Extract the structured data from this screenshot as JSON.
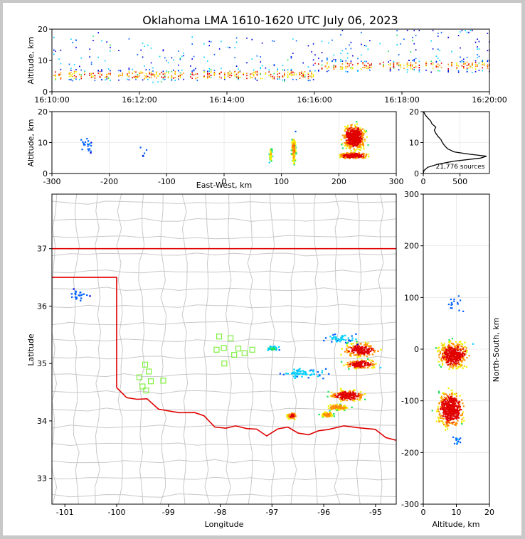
{
  "title": "Oklahoma LMA 1610-1620 UTC July 06, 2023",
  "colors": {
    "density": [
      "#0000e0",
      "#0060ff",
      "#00d0ff",
      "#20e060",
      "#f0f000",
      "#ff9000",
      "#e00000"
    ],
    "state_border": "#e00000",
    "county_lines": "#c8c8c8",
    "stations": "#80f040",
    "profile_line": "#000000"
  },
  "chart_data": [
    {
      "name": "time_height",
      "type": "heatmap",
      "xlabel": "",
      "ylabel": "Altitude, km",
      "x_ticks": [
        "16:10:00",
        "16:12:00",
        "16:14:00",
        "16:16:00",
        "16:18:00",
        "16:20:00"
      ],
      "x_range_minutes": [
        0,
        10
      ],
      "ylim": [
        0,
        20
      ],
      "y_ticks": [
        0,
        10,
        20
      ]
    },
    {
      "name": "east_west_height",
      "type": "heatmap",
      "xlabel": "East-West, km",
      "ylabel": "Altitude, km",
      "xlim": [
        -300,
        300
      ],
      "x_ticks": [
        -300,
        -200,
        -100,
        0,
        100,
        200,
        300
      ],
      "ylim": [
        0,
        20
      ],
      "y_ticks": [
        0,
        10,
        20
      ]
    },
    {
      "name": "altitude_histogram",
      "type": "line",
      "xlim": [
        0,
        900
      ],
      "x_ticks": [
        0,
        500
      ],
      "ylim": [
        0,
        20
      ],
      "y_ticks": [
        0,
        10,
        20
      ],
      "annotation": "21,776 sources",
      "profile": [
        {
          "alt": 0.0,
          "count": 0
        },
        {
          "alt": 1.0,
          "count": 10
        },
        {
          "alt": 2.0,
          "count": 60
        },
        {
          "alt": 3.0,
          "count": 200
        },
        {
          "alt": 4.0,
          "count": 420
        },
        {
          "alt": 5.0,
          "count": 780
        },
        {
          "alt": 5.6,
          "count": 860
        },
        {
          "alt": 6.2,
          "count": 640
        },
        {
          "alt": 7.0,
          "count": 420
        },
        {
          "alt": 8.0,
          "count": 330
        },
        {
          "alt": 9.0,
          "count": 290
        },
        {
          "alt": 10.0,
          "count": 260
        },
        {
          "alt": 11.0,
          "count": 240
        },
        {
          "alt": 12.0,
          "count": 200
        },
        {
          "alt": 13.0,
          "count": 170
        },
        {
          "alt": 14.0,
          "count": 150
        },
        {
          "alt": 15.0,
          "count": 170
        },
        {
          "alt": 16.0,
          "count": 120
        },
        {
          "alt": 17.0,
          "count": 100
        },
        {
          "alt": 18.0,
          "count": 60
        },
        {
          "alt": 19.0,
          "count": 25
        },
        {
          "alt": 20.0,
          "count": 5
        }
      ]
    },
    {
      "name": "plan_view",
      "type": "heatmap",
      "xlabel": "Longitude",
      "ylabel": "Latitude",
      "xlim": [
        -101.25,
        -94.6
      ],
      "x_ticks": [
        -101,
        -100,
        -99,
        -98,
        -97,
        -96,
        -95
      ],
      "ylim": [
        32.55,
        37.95
      ],
      "y_ticks": [
        33,
        34,
        35,
        36,
        37
      ],
      "stations": [
        {
          "lon": -99.56,
          "lat": 34.76
        },
        {
          "lon": -99.45,
          "lat": 34.98
        },
        {
          "lon": -99.38,
          "lat": 34.86
        },
        {
          "lon": -99.34,
          "lat": 34.69
        },
        {
          "lon": -99.5,
          "lat": 34.6
        },
        {
          "lon": -99.43,
          "lat": 34.53
        },
        {
          "lon": -99.1,
          "lat": 34.7
        },
        {
          "lon": -98.02,
          "lat": 35.47
        },
        {
          "lon": -97.8,
          "lat": 35.44
        },
        {
          "lon": -98.07,
          "lat": 35.24
        },
        {
          "lon": -97.93,
          "lat": 35.27
        },
        {
          "lon": -97.73,
          "lat": 35.15
        },
        {
          "lon": -97.65,
          "lat": 35.26
        },
        {
          "lon": -97.53,
          "lat": 35.18
        },
        {
          "lon": -97.38,
          "lat": 35.24
        },
        {
          "lon": -97.92,
          "lat": 35.0
        }
      ],
      "source_clusters": [
        {
          "lon": -95.3,
          "lat": 35.25,
          "rlon": 0.55,
          "rlat": 0.2,
          "intensity": 0.95
        },
        {
          "lon": -95.3,
          "lat": 35.0,
          "rlon": 0.45,
          "rlat": 0.12,
          "intensity": 1.0
        },
        {
          "lon": -95.55,
          "lat": 34.45,
          "rlon": 0.5,
          "rlat": 0.15,
          "intensity": 1.0
        },
        {
          "lon": -95.75,
          "lat": 34.25,
          "rlon": 0.35,
          "rlat": 0.08,
          "intensity": 0.8
        },
        {
          "lon": -96.63,
          "lat": 34.1,
          "rlon": 0.15,
          "rlat": 0.1,
          "intensity": 0.9
        },
        {
          "lon": -95.95,
          "lat": 34.12,
          "rlon": 0.2,
          "rlat": 0.08,
          "intensity": 0.8
        },
        {
          "lon": -100.75,
          "lat": 36.2,
          "rlon": 0.3,
          "rlat": 0.18,
          "intensity": 0.2
        },
        {
          "lon": -97.0,
          "lat": 35.28,
          "rlon": 0.2,
          "rlat": 0.06,
          "intensity": 0.45
        },
        {
          "lon": -96.4,
          "lat": 34.85,
          "rlon": 0.7,
          "rlat": 0.15,
          "intensity": 0.3
        },
        {
          "lon": -95.7,
          "lat": 35.45,
          "rlon": 0.5,
          "rlat": 0.12,
          "intensity": 0.3
        }
      ]
    },
    {
      "name": "height_north_south",
      "type": "heatmap",
      "xlabel": "Altitude, km",
      "ylabel": "North-South, km",
      "xlim": [
        0,
        20
      ],
      "x_ticks": [
        0,
        10,
        20
      ],
      "ylim": [
        -300,
        300
      ],
      "y_ticks": [
        -300,
        -200,
        -100,
        0,
        100,
        200,
        300
      ]
    }
  ]
}
